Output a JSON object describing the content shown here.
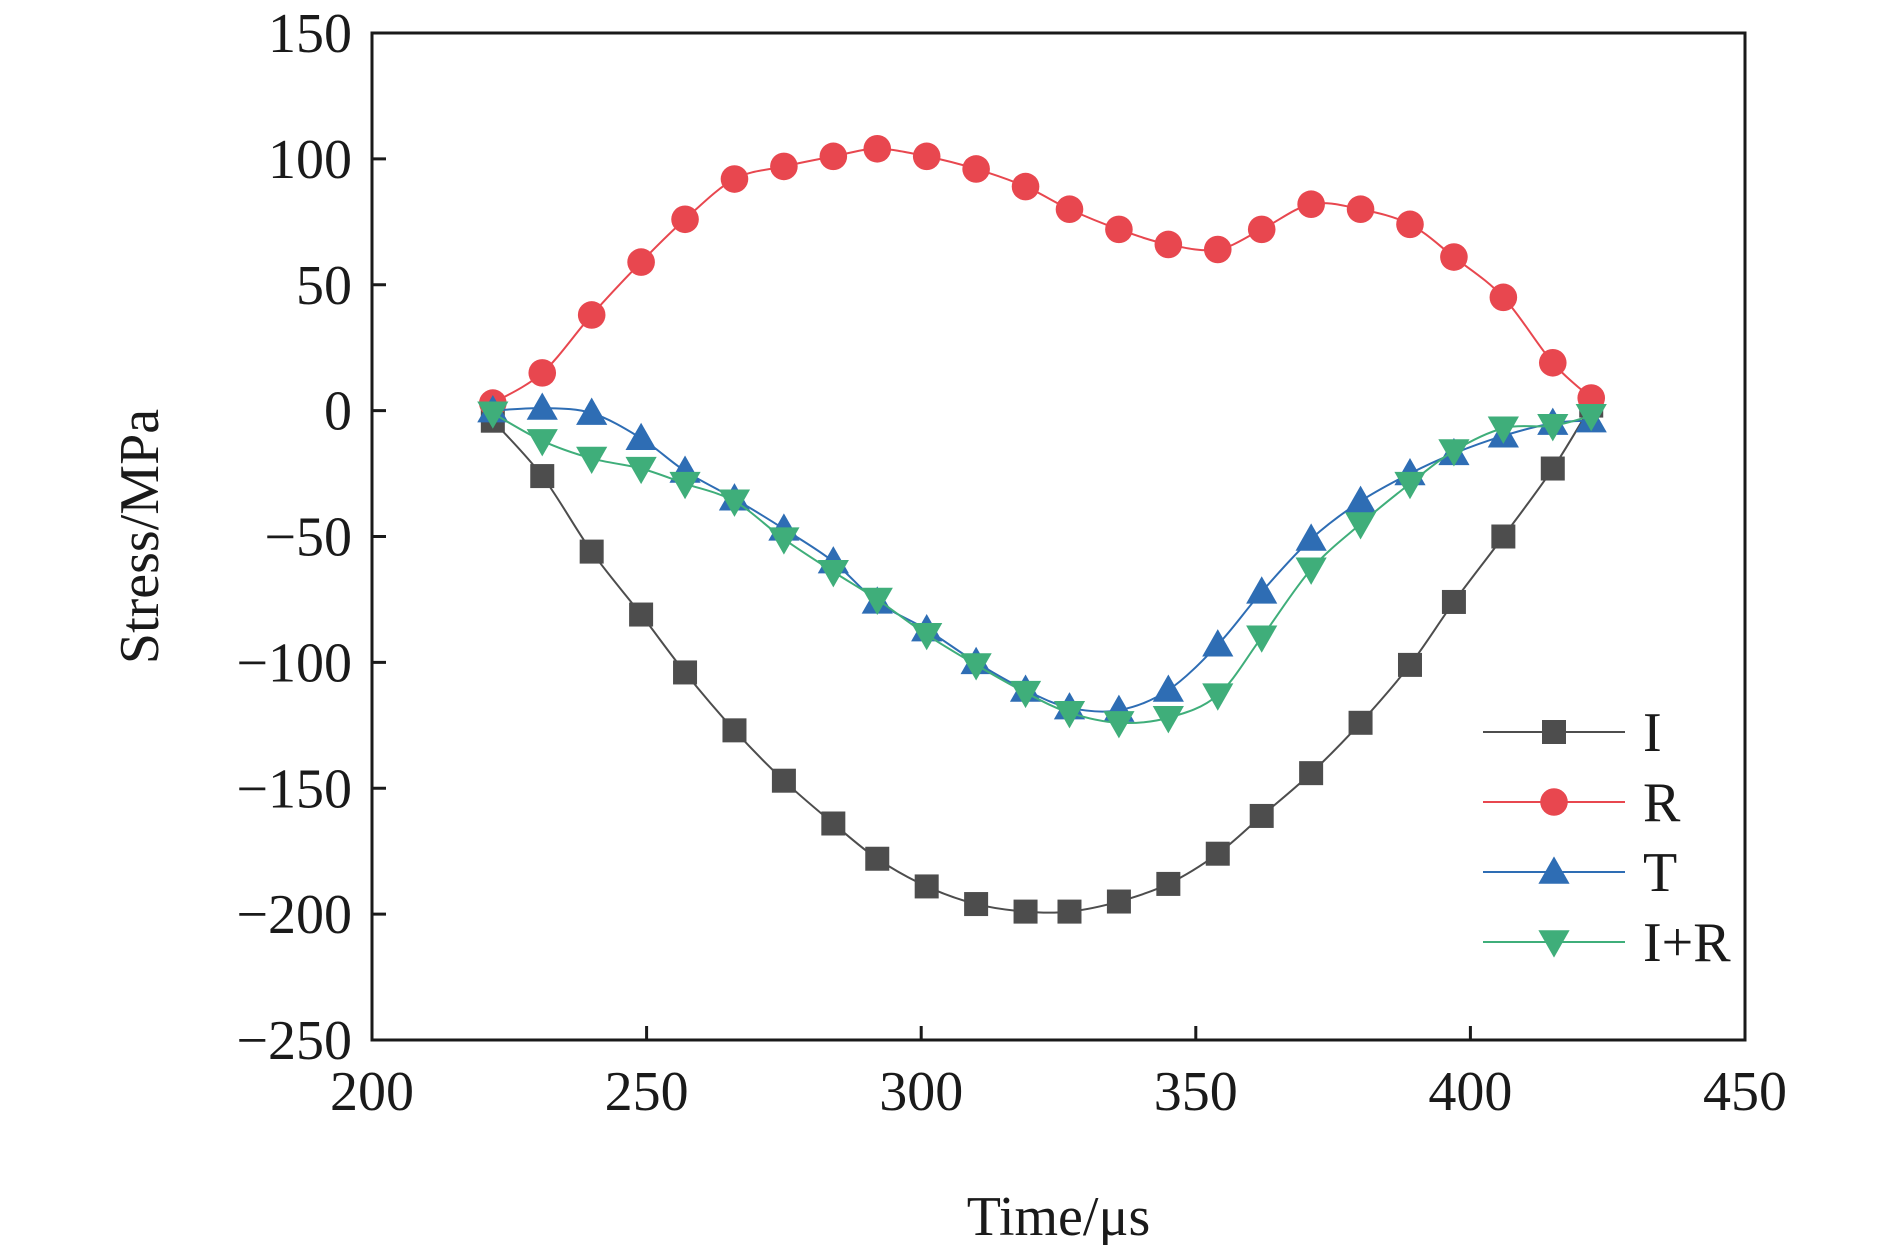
{
  "chart_data": {
    "type": "line",
    "xlabel": "Time/μs",
    "ylabel": "Stress/MPa",
    "xlim": [
      200,
      450
    ],
    "ylim": [
      -250,
      150
    ],
    "xticks": [
      200,
      250,
      300,
      350,
      400,
      450
    ],
    "yticks": [
      150,
      100,
      50,
      0,
      -50,
      -100,
      -150,
      -200,
      -250
    ],
    "ytick_labels": [
      "150",
      "100",
      "50",
      "0",
      "−50",
      "−100",
      "−150",
      "−200",
      "−250"
    ],
    "legend_position": "bottom-right",
    "series": [
      {
        "name": "I",
        "color": "#4d4d4d",
        "marker": "square",
        "points": [
          [
            222,
            -4
          ],
          [
            231,
            -26
          ],
          [
            240,
            -56
          ],
          [
            249,
            -81
          ],
          [
            257,
            -104
          ],
          [
            266,
            -127
          ],
          [
            275,
            -147
          ],
          [
            284,
            -164
          ],
          [
            292,
            -178
          ],
          [
            301,
            -189
          ],
          [
            310,
            -196
          ],
          [
            319,
            -199
          ],
          [
            327,
            -199
          ],
          [
            336,
            -195
          ],
          [
            345,
            -188
          ],
          [
            354,
            -176
          ],
          [
            362,
            -161
          ],
          [
            371,
            -144
          ],
          [
            380,
            -124
          ],
          [
            389,
            -101
          ],
          [
            397,
            -76
          ],
          [
            406,
            -50
          ],
          [
            415,
            -23
          ],
          [
            422,
            2
          ]
        ]
      },
      {
        "name": "R",
        "color": "#e8474f",
        "marker": "circle",
        "points": [
          [
            222,
            3
          ],
          [
            231,
            15
          ],
          [
            240,
            38
          ],
          [
            249,
            59
          ],
          [
            257,
            76
          ],
          [
            266,
            92
          ],
          [
            275,
            97
          ],
          [
            284,
            101
          ],
          [
            292,
            104
          ],
          [
            301,
            101
          ],
          [
            310,
            96
          ],
          [
            319,
            89
          ],
          [
            327,
            80
          ],
          [
            336,
            72
          ],
          [
            345,
            66
          ],
          [
            354,
            64
          ],
          [
            362,
            72
          ],
          [
            371,
            82
          ],
          [
            380,
            80
          ],
          [
            389,
            74
          ],
          [
            397,
            61
          ],
          [
            406,
            45
          ],
          [
            415,
            19
          ],
          [
            422,
            5
          ]
        ]
      },
      {
        "name": "T",
        "color": "#2e6db4",
        "marker": "triangle-up",
        "points": [
          [
            222,
            0
          ],
          [
            231,
            1
          ],
          [
            240,
            -1
          ],
          [
            249,
            -11
          ],
          [
            257,
            -24
          ],
          [
            266,
            -35
          ],
          [
            275,
            -47
          ],
          [
            284,
            -60
          ],
          [
            292,
            -76
          ],
          [
            301,
            -87
          ],
          [
            310,
            -100
          ],
          [
            319,
            -111
          ],
          [
            327,
            -118
          ],
          [
            336,
            -119
          ],
          [
            345,
            -111
          ],
          [
            354,
            -93
          ],
          [
            362,
            -72
          ],
          [
            371,
            -51
          ],
          [
            380,
            -36
          ],
          [
            389,
            -25
          ],
          [
            397,
            -17
          ],
          [
            406,
            -10
          ],
          [
            415,
            -5
          ],
          [
            422,
            -4
          ]
        ]
      },
      {
        "name": "I+R",
        "color": "#3fae7a",
        "marker": "triangle-down",
        "points": [
          [
            222,
            -1
          ],
          [
            231,
            -12
          ],
          [
            240,
            -19
          ],
          [
            249,
            -23
          ],
          [
            257,
            -29
          ],
          [
            266,
            -36
          ],
          [
            275,
            -51
          ],
          [
            284,
            -64
          ],
          [
            292,
            -75
          ],
          [
            301,
            -89
          ],
          [
            310,
            -101
          ],
          [
            319,
            -112
          ],
          [
            327,
            -120
          ],
          [
            336,
            -124
          ],
          [
            345,
            -122
          ],
          [
            354,
            -113
          ],
          [
            362,
            -90
          ],
          [
            371,
            -63
          ],
          [
            380,
            -45
          ],
          [
            389,
            -29
          ],
          [
            397,
            -16
          ],
          [
            406,
            -7
          ],
          [
            415,
            -6
          ],
          [
            422,
            -2
          ]
        ]
      }
    ]
  }
}
